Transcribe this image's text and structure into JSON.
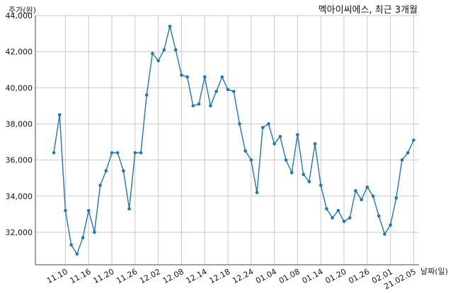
{
  "chart_data": {
    "type": "line",
    "title": "멕아이씨에스, 최근 3개월",
    "ylabel": "주가(원)",
    "xlabel": "날짜(일)",
    "ylim": [
      30200,
      44000
    ],
    "yticks": [
      32000,
      34000,
      36000,
      38000,
      40000,
      42000,
      44000
    ],
    "ytick_labels": [
      "32,000",
      "34,000",
      "36,000",
      "38,000",
      "40,000",
      "42,000",
      "44,000"
    ],
    "xtick_labels": [
      "11.10",
      "11.16",
      "11.20",
      "11.26",
      "12.02",
      "12.08",
      "12.14",
      "12.18",
      "12.24",
      "01.04",
      "01.08",
      "01.14",
      "01.20",
      "01.26",
      "02.01",
      "21.02.05"
    ],
    "xtick_index": [
      2,
      6,
      10,
      14,
      18,
      22,
      26,
      30,
      34,
      38,
      42,
      46,
      50,
      54,
      58,
      62
    ],
    "grid": true,
    "line_color": "#1f77b4",
    "series": [
      {
        "values": [
          36400,
          38500,
          33200,
          31300,
          30800,
          31700,
          33200,
          32000,
          34600,
          35400,
          36400,
          36400,
          35400,
          33300,
          36400,
          36400,
          39600,
          41900,
          41500,
          42100,
          43400,
          42100,
          40700,
          40600,
          39000,
          39100,
          40600,
          39000,
          39800,
          40600,
          39900,
          39800,
          38000,
          36500,
          36000,
          34200,
          37800,
          38000,
          36900,
          37300,
          36000,
          35300,
          37400,
          35200,
          34800,
          36900,
          34600,
          33300,
          32800,
          33200,
          32600,
          32800,
          34300,
          33800,
          34500,
          34000,
          32900,
          31900,
          32400,
          33900,
          36000,
          36400,
          37100
        ]
      }
    ]
  }
}
